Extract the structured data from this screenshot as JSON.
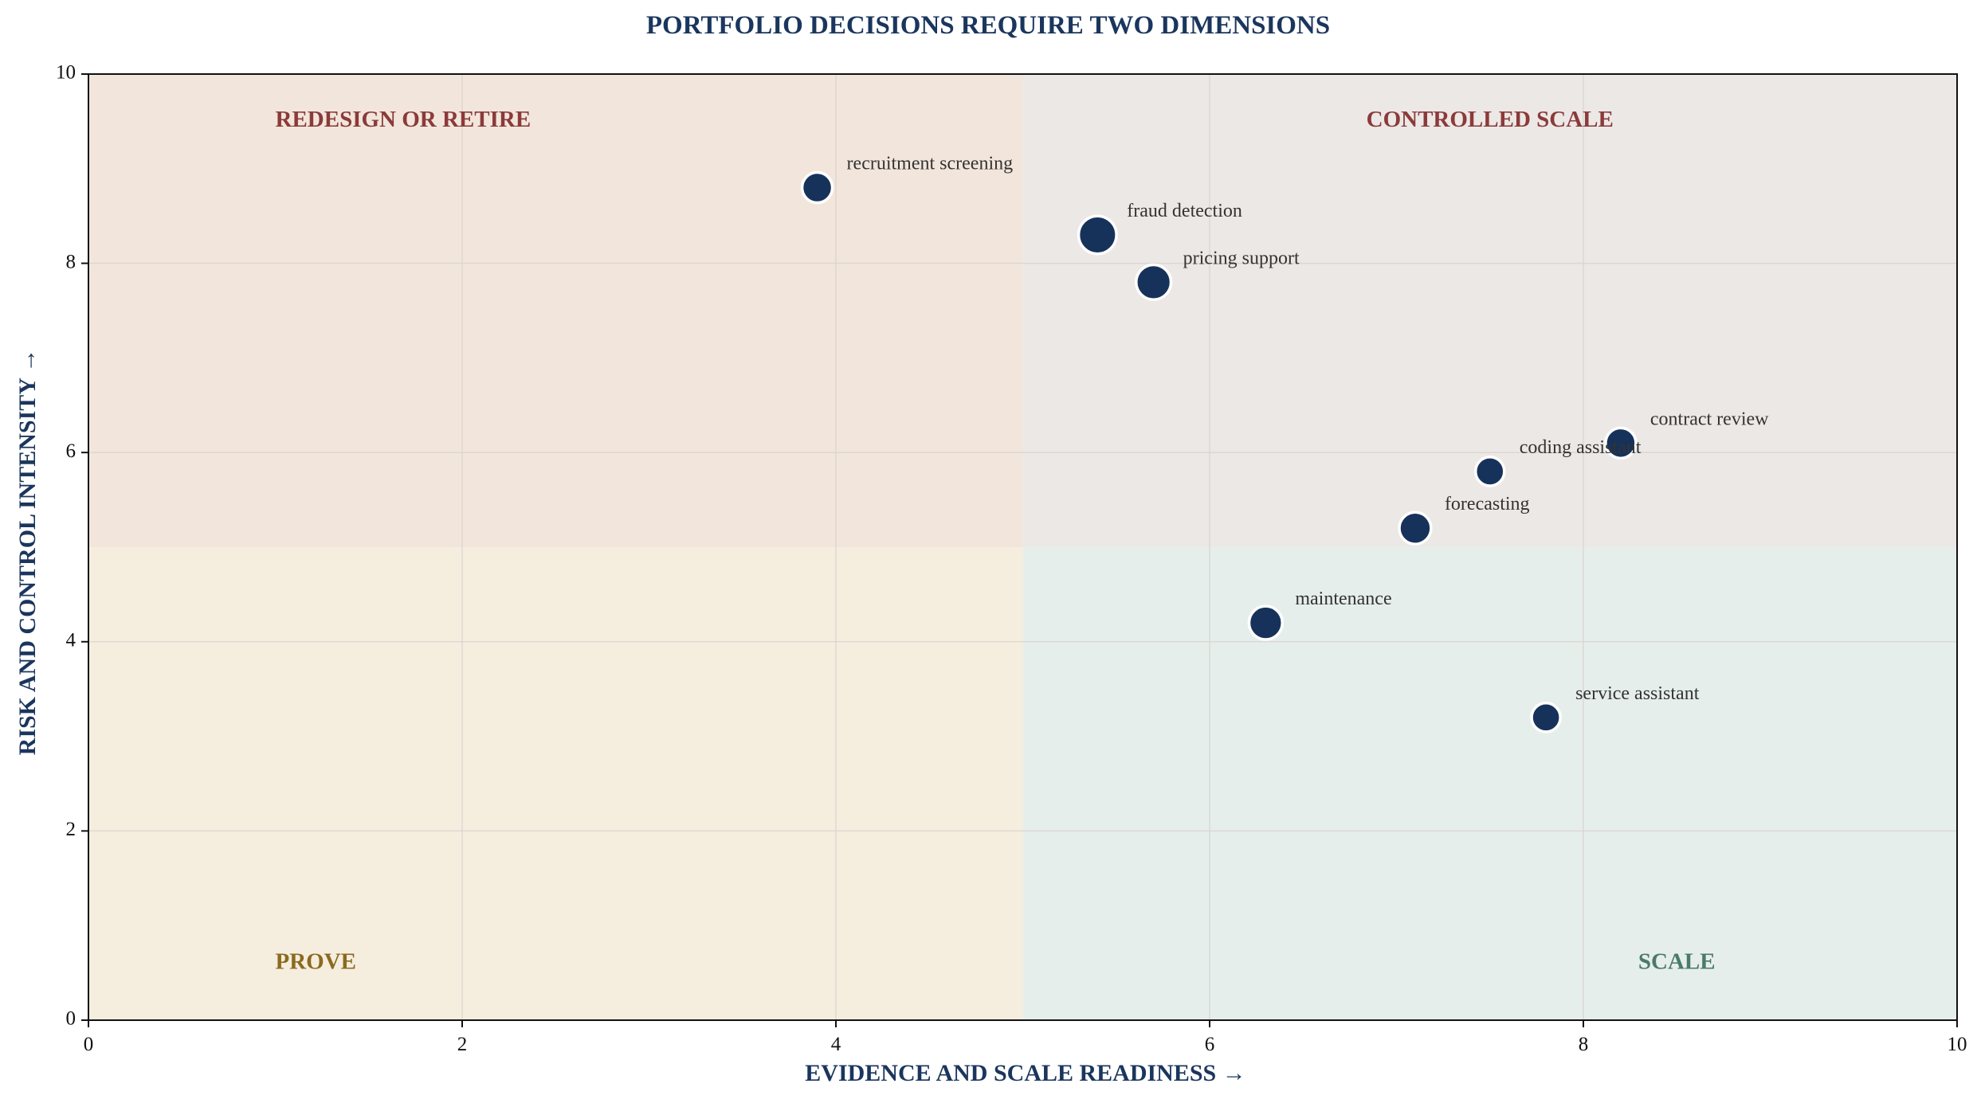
{
  "chart_data": {
    "type": "scatter",
    "title": "PORTFOLIO DECISIONS REQUIRE TWO DIMENSIONS",
    "xlabel": "EVIDENCE AND SCALE READINESS  →",
    "ylabel": "RISK AND CONTROL INTENSITY  →",
    "xlim": [
      0,
      10
    ],
    "ylim": [
      0,
      10
    ],
    "xticks": [
      0,
      2,
      4,
      6,
      8,
      10
    ],
    "yticks": [
      0,
      2,
      4,
      6,
      8,
      10
    ],
    "grid": true,
    "quadrant_split": {
      "x": 5,
      "y": 5
    },
    "quadrants": [
      {
        "label": "REDESIGN OR RETIRE",
        "position": "top-left",
        "fill": "#f2e6dc",
        "text_color": "#8b3a3a"
      },
      {
        "label": "CONTROLLED SCALE",
        "position": "top-right",
        "fill": "#ece8e6",
        "text_color": "#8b3a3a"
      },
      {
        "label": "PROVE",
        "position": "bottom-left",
        "fill": "#f5eedf",
        "text_color": "#8b6a1f"
      },
      {
        "label": "SCALE",
        "position": "bottom-right",
        "fill": "#e6eeec",
        "text_color": "#4a7a6a"
      }
    ],
    "points": [
      {
        "label": "recruitment screening",
        "x": 3.9,
        "y": 8.8,
        "weight": 1.0
      },
      {
        "label": "fraud detection",
        "x": 5.4,
        "y": 8.3,
        "weight": 1.25
      },
      {
        "label": "pricing support",
        "x": 5.7,
        "y": 7.8,
        "weight": 1.15
      },
      {
        "label": "contract review",
        "x": 8.2,
        "y": 6.1,
        "weight": 1.0
      },
      {
        "label": "coding assistant",
        "x": 7.5,
        "y": 5.8,
        "weight": 0.95
      },
      {
        "label": "forecasting",
        "x": 7.1,
        "y": 5.2,
        "weight": 1.05
      },
      {
        "label": "maintenance",
        "x": 6.3,
        "y": 4.2,
        "weight": 1.1
      },
      {
        "label": "service assistant",
        "x": 7.8,
        "y": 3.2,
        "weight": 0.95
      }
    ],
    "colors": {
      "marker": "#17325a",
      "marker_edge": "#ffffff",
      "grid": "#d9d4cf",
      "axis": "#111111"
    }
  }
}
